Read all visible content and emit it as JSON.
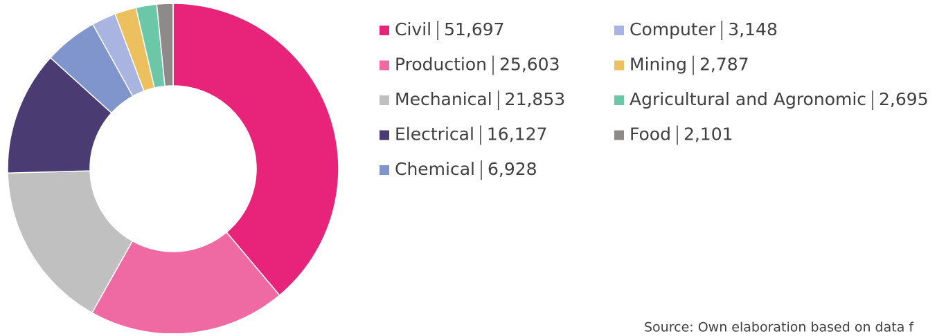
{
  "chart_data": {
    "type": "donut",
    "categories": [
      "Civil",
      "Production",
      "Mechanical",
      "Electrical",
      "Chemical",
      "Computer",
      "Mining",
      "Agricultural and Agronomic",
      "Food"
    ],
    "values": [
      51697,
      25603,
      21853,
      16127,
      6928,
      3148,
      2787,
      2695,
      2101
    ],
    "value_labels": [
      "51,697",
      "25,603",
      "21,853",
      "16,127",
      "6,928",
      "3,148",
      "2,787",
      "2,695",
      "2,101"
    ],
    "colors": [
      "#e8237a",
      "#ef6aa2",
      "#c0c0c0",
      "#4a3b72",
      "#7f95cc",
      "#a9b5e0",
      "#ecc05f",
      "#6cc7a8",
      "#8f8a8a"
    ],
    "source": "Source: Own elaboration based on data f"
  }
}
